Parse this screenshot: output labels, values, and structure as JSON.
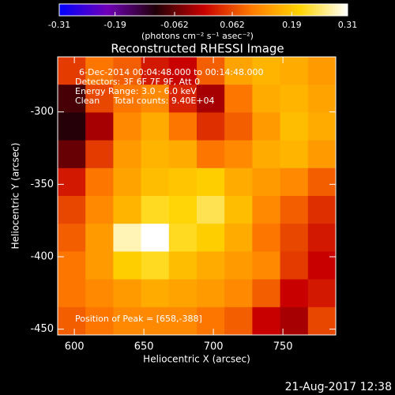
{
  "chart_data": {
    "type": "heatmap",
    "title": "Reconstructed RHESSI Image",
    "xlabel": "Heliocentric X (arcsec)",
    "ylabel": "Heliocentric Y (arcsec)",
    "colorbar_label": "(photons cm⁻² s⁻¹ asec⁻²)",
    "clim": [
      -0.31,
      0.31
    ],
    "cticks": [
      -0.31,
      -0.19,
      -0.062,
      0.062,
      0.19,
      0.31
    ],
    "colors": [
      "#0000ff",
      "#7000b8",
      "#200008",
      "#c80000",
      "#ff7a00",
      "#ffd400",
      "#ffffff"
    ],
    "xlim": [
      588,
      788
    ],
    "ylim": [
      -454,
      -262
    ],
    "xticks": [
      600,
      650,
      700,
      750
    ],
    "yticks": [
      -300,
      -350,
      -400,
      -450
    ],
    "xbins": [
      588,
      608,
      628,
      648,
      668,
      688,
      708,
      728,
      748,
      768,
      788
    ],
    "ybins": [
      -262,
      -281.2,
      -300.4,
      -319.6,
      -338.8,
      -358,
      -377.2,
      -396.4,
      -415.6,
      -434.8,
      -454
    ],
    "values": [
      [
        0.05,
        0.1,
        0.08,
        0.02,
        0.0,
        0.08,
        0.15,
        0.17,
        0.16,
        0.14
      ],
      [
        -0.08,
        0.06,
        0.1,
        0.12,
        0.03,
        -0.02,
        0.1,
        0.16,
        0.17,
        0.15
      ],
      [
        -0.1,
        -0.02,
        0.12,
        0.16,
        0.1,
        0.04,
        0.08,
        0.14,
        0.18,
        0.16
      ],
      [
        -0.06,
        0.05,
        0.14,
        0.17,
        0.16,
        0.1,
        0.12,
        0.16,
        0.17,
        0.14
      ],
      [
        0.02,
        0.1,
        0.15,
        0.18,
        0.19,
        0.2,
        0.16,
        0.14,
        0.12,
        0.08
      ],
      [
        0.06,
        0.12,
        0.17,
        0.22,
        0.21,
        0.24,
        0.18,
        0.12,
        0.08,
        0.04
      ],
      [
        0.08,
        0.14,
        0.28,
        0.31,
        0.22,
        0.2,
        0.16,
        0.1,
        0.06,
        0.02
      ],
      [
        0.1,
        0.14,
        0.2,
        0.22,
        0.18,
        0.16,
        0.14,
        0.12,
        0.05,
        0.0
      ],
      [
        0.1,
        0.12,
        0.14,
        0.16,
        0.15,
        0.14,
        0.12,
        0.08,
        0.0,
        0.02
      ],
      [
        0.08,
        0.1,
        0.12,
        0.12,
        0.12,
        0.1,
        0.08,
        0.0,
        -0.02,
        0.06
      ]
    ],
    "annotations": [
      "6-Dec-2014 00:04:48.000 to 00:14:48.000",
      "Detectors: 3F 6F 7F 9F, Att 0",
      "Energy Range: 3.0 - 6.0 keV",
      "Clean     Total counts: 9.40E+04"
    ],
    "peak_label": "Position of Peak = [658,-388]",
    "footer": "21-Aug-2017 12:38"
  }
}
